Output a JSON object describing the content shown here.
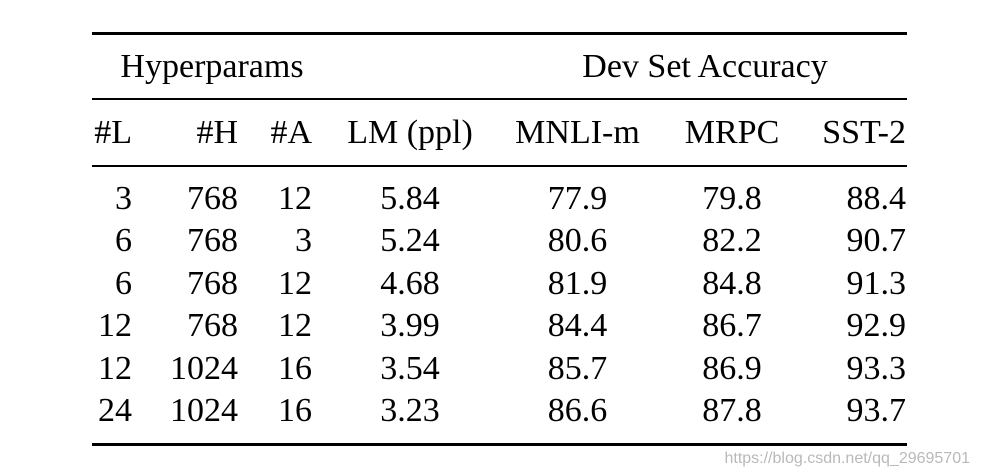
{
  "group_headers": {
    "hyperparams": "Hyperparams",
    "dev_set_accuracy": "Dev Set Accuracy"
  },
  "columns": [
    "#L",
    "#H",
    "#A",
    "LM (ppl)",
    "MNLI-m",
    "MRPC",
    "SST-2"
  ],
  "rows": [
    [
      "3",
      "768",
      "12",
      "5.84",
      "77.9",
      "79.8",
      "88.4"
    ],
    [
      "6",
      "768",
      "3",
      "5.24",
      "80.6",
      "82.2",
      "90.7"
    ],
    [
      "6",
      "768",
      "12",
      "4.68",
      "81.9",
      "84.8",
      "91.3"
    ],
    [
      "12",
      "768",
      "12",
      "3.99",
      "84.4",
      "86.7",
      "92.9"
    ],
    [
      "12",
      "1024",
      "16",
      "3.54",
      "85.7",
      "86.9",
      "93.3"
    ],
    [
      "24",
      "1024",
      "16",
      "3.23",
      "86.6",
      "87.8",
      "93.7"
    ]
  ],
  "watermark": "https://blog.csdn.net/qq_29695701"
}
